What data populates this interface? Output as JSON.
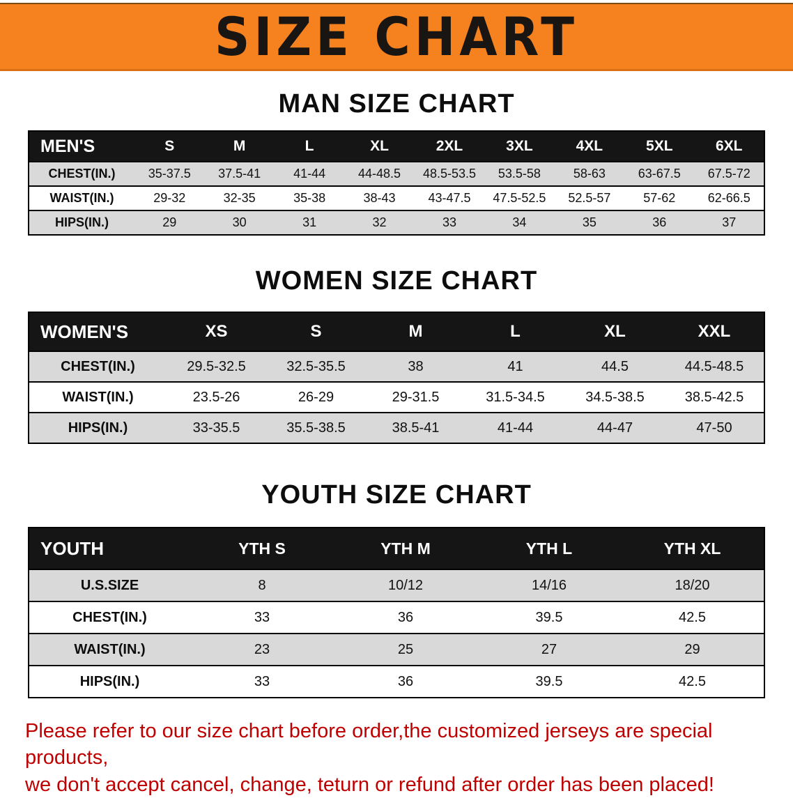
{
  "banner": {
    "title": "SIZE CHART",
    "bg_color": "#F6821F"
  },
  "sections": {
    "men": {
      "heading": "MAN SIZE CHART",
      "table": {
        "header": [
          "MEN'S",
          "S",
          "M",
          "L",
          "XL",
          "2XL",
          "3XL",
          "4XL",
          "5XL",
          "6XL"
        ],
        "rows": [
          [
            "CHEST(IN.)",
            "35-37.5",
            "37.5-41",
            "41-44",
            "44-48.5",
            "48.5-53.5",
            "53.5-58",
            "58-63",
            "63-67.5",
            "67.5-72"
          ],
          [
            "WAIST(IN.)",
            "29-32",
            "32-35",
            "35-38",
            "38-43",
            "43-47.5",
            "47.5-52.5",
            "52.5-57",
            "57-62",
            "62-66.5"
          ],
          [
            "HIPS(IN.)",
            "29",
            "30",
            "31",
            "32",
            "33",
            "34",
            "35",
            "36",
            "37"
          ]
        ]
      }
    },
    "women": {
      "heading": "WOMEN SIZE CHART",
      "table": {
        "header": [
          "WOMEN'S",
          "XS",
          "S",
          "M",
          "L",
          "XL",
          "XXL"
        ],
        "rows": [
          [
            "CHEST(IN.)",
            "29.5-32.5",
            "32.5-35.5",
            "38",
            "41",
            "44.5",
            "44.5-48.5"
          ],
          [
            "WAIST(IN.)",
            "23.5-26",
            "26-29",
            "29-31.5",
            "31.5-34.5",
            "34.5-38.5",
            "38.5-42.5"
          ],
          [
            "HIPS(IN.)",
            "33-35.5",
            "35.5-38.5",
            "38.5-41",
            "41-44",
            "44-47",
            "47-50"
          ]
        ]
      }
    },
    "youth": {
      "heading": "YOUTH SIZE CHART",
      "table": {
        "header": [
          "YOUTH",
          "YTH S",
          "YTH M",
          "YTH L",
          "YTH XL"
        ],
        "rows": [
          [
            "U.S.SIZE",
            "8",
            "10/12",
            "14/16",
            "18/20"
          ],
          [
            "CHEST(IN.)",
            "33",
            "36",
            "39.5",
            "42.5"
          ],
          [
            "WAIST(IN.)",
            "23",
            "25",
            "27",
            "29"
          ],
          [
            "HIPS(IN.)",
            "33",
            "36",
            "39.5",
            "42.5"
          ]
        ]
      }
    }
  },
  "disclaimer": {
    "color": "#C00000",
    "line1": "Please refer to our size chart before order,the customized jerseys are special products,",
    "line2": "we don't accept cancel, change, teturn or refund after order has been placed!"
  }
}
